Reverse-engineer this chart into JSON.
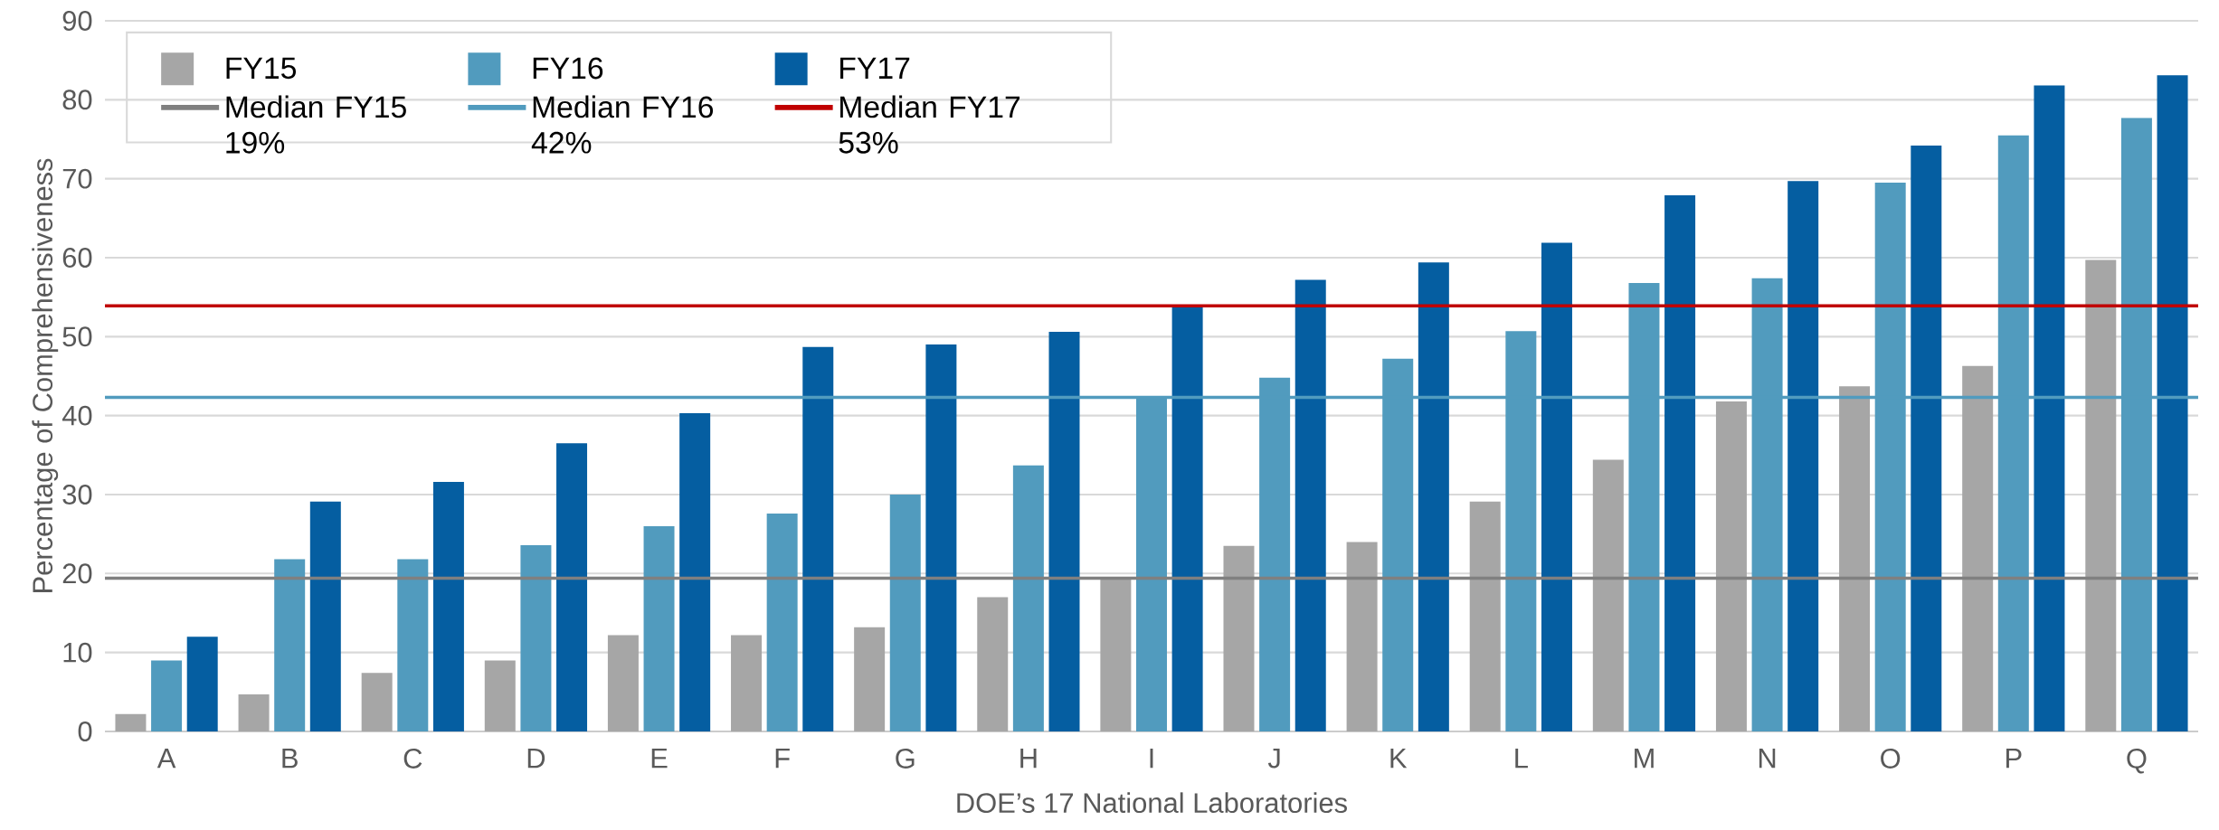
{
  "chart_data": {
    "type": "bar",
    "xlabel": "DOE’s 17 National Laboratories",
    "ylabel": "Percentage of Comprehensiveness",
    "categories": [
      "A",
      "B",
      "C",
      "D",
      "E",
      "F",
      "G",
      "H",
      "I",
      "J",
      "K",
      "L",
      "M",
      "N",
      "O",
      "P",
      "Q"
    ],
    "series": [
      {
        "name": "FY15",
        "color": "#a6a6a6",
        "values": [
          2.2,
          4.7,
          7.4,
          9.0,
          12.2,
          12.2,
          13.2,
          17.0,
          19.4,
          23.5,
          24.0,
          29.1,
          34.4,
          41.8,
          43.7,
          46.3,
          59.7
        ]
      },
      {
        "name": "FY16",
        "color": "#519bbe",
        "values": [
          9.0,
          21.8,
          21.8,
          23.6,
          26.0,
          27.6,
          30.0,
          33.7,
          42.4,
          44.8,
          47.2,
          50.7,
          56.8,
          57.4,
          69.5,
          75.5,
          77.7
        ]
      },
      {
        "name": "FY17",
        "color": "#055ea1",
        "values": [
          12.0,
          29.1,
          31.6,
          36.5,
          40.3,
          48.7,
          49.0,
          50.6,
          54.0,
          57.2,
          59.4,
          61.9,
          67.9,
          69.7,
          74.2,
          81.8,
          83.1
        ]
      }
    ],
    "ref_lines": [
      {
        "axis": "y",
        "value": 19.4,
        "label": "Median FY15 19%",
        "color": "#808080"
      },
      {
        "axis": "y",
        "value": 42.3,
        "label": "Median FY16 42%",
        "color": "#519bbe"
      },
      {
        "axis": "y",
        "value": 53.9,
        "label": "Median FY17 53%",
        "color": "#c00000"
      }
    ],
    "ylim": [
      0,
      90
    ],
    "yticks": [
      0,
      10,
      20,
      30,
      40,
      50,
      60,
      70,
      80,
      90
    ],
    "grid": "y",
    "legend": "top left"
  }
}
